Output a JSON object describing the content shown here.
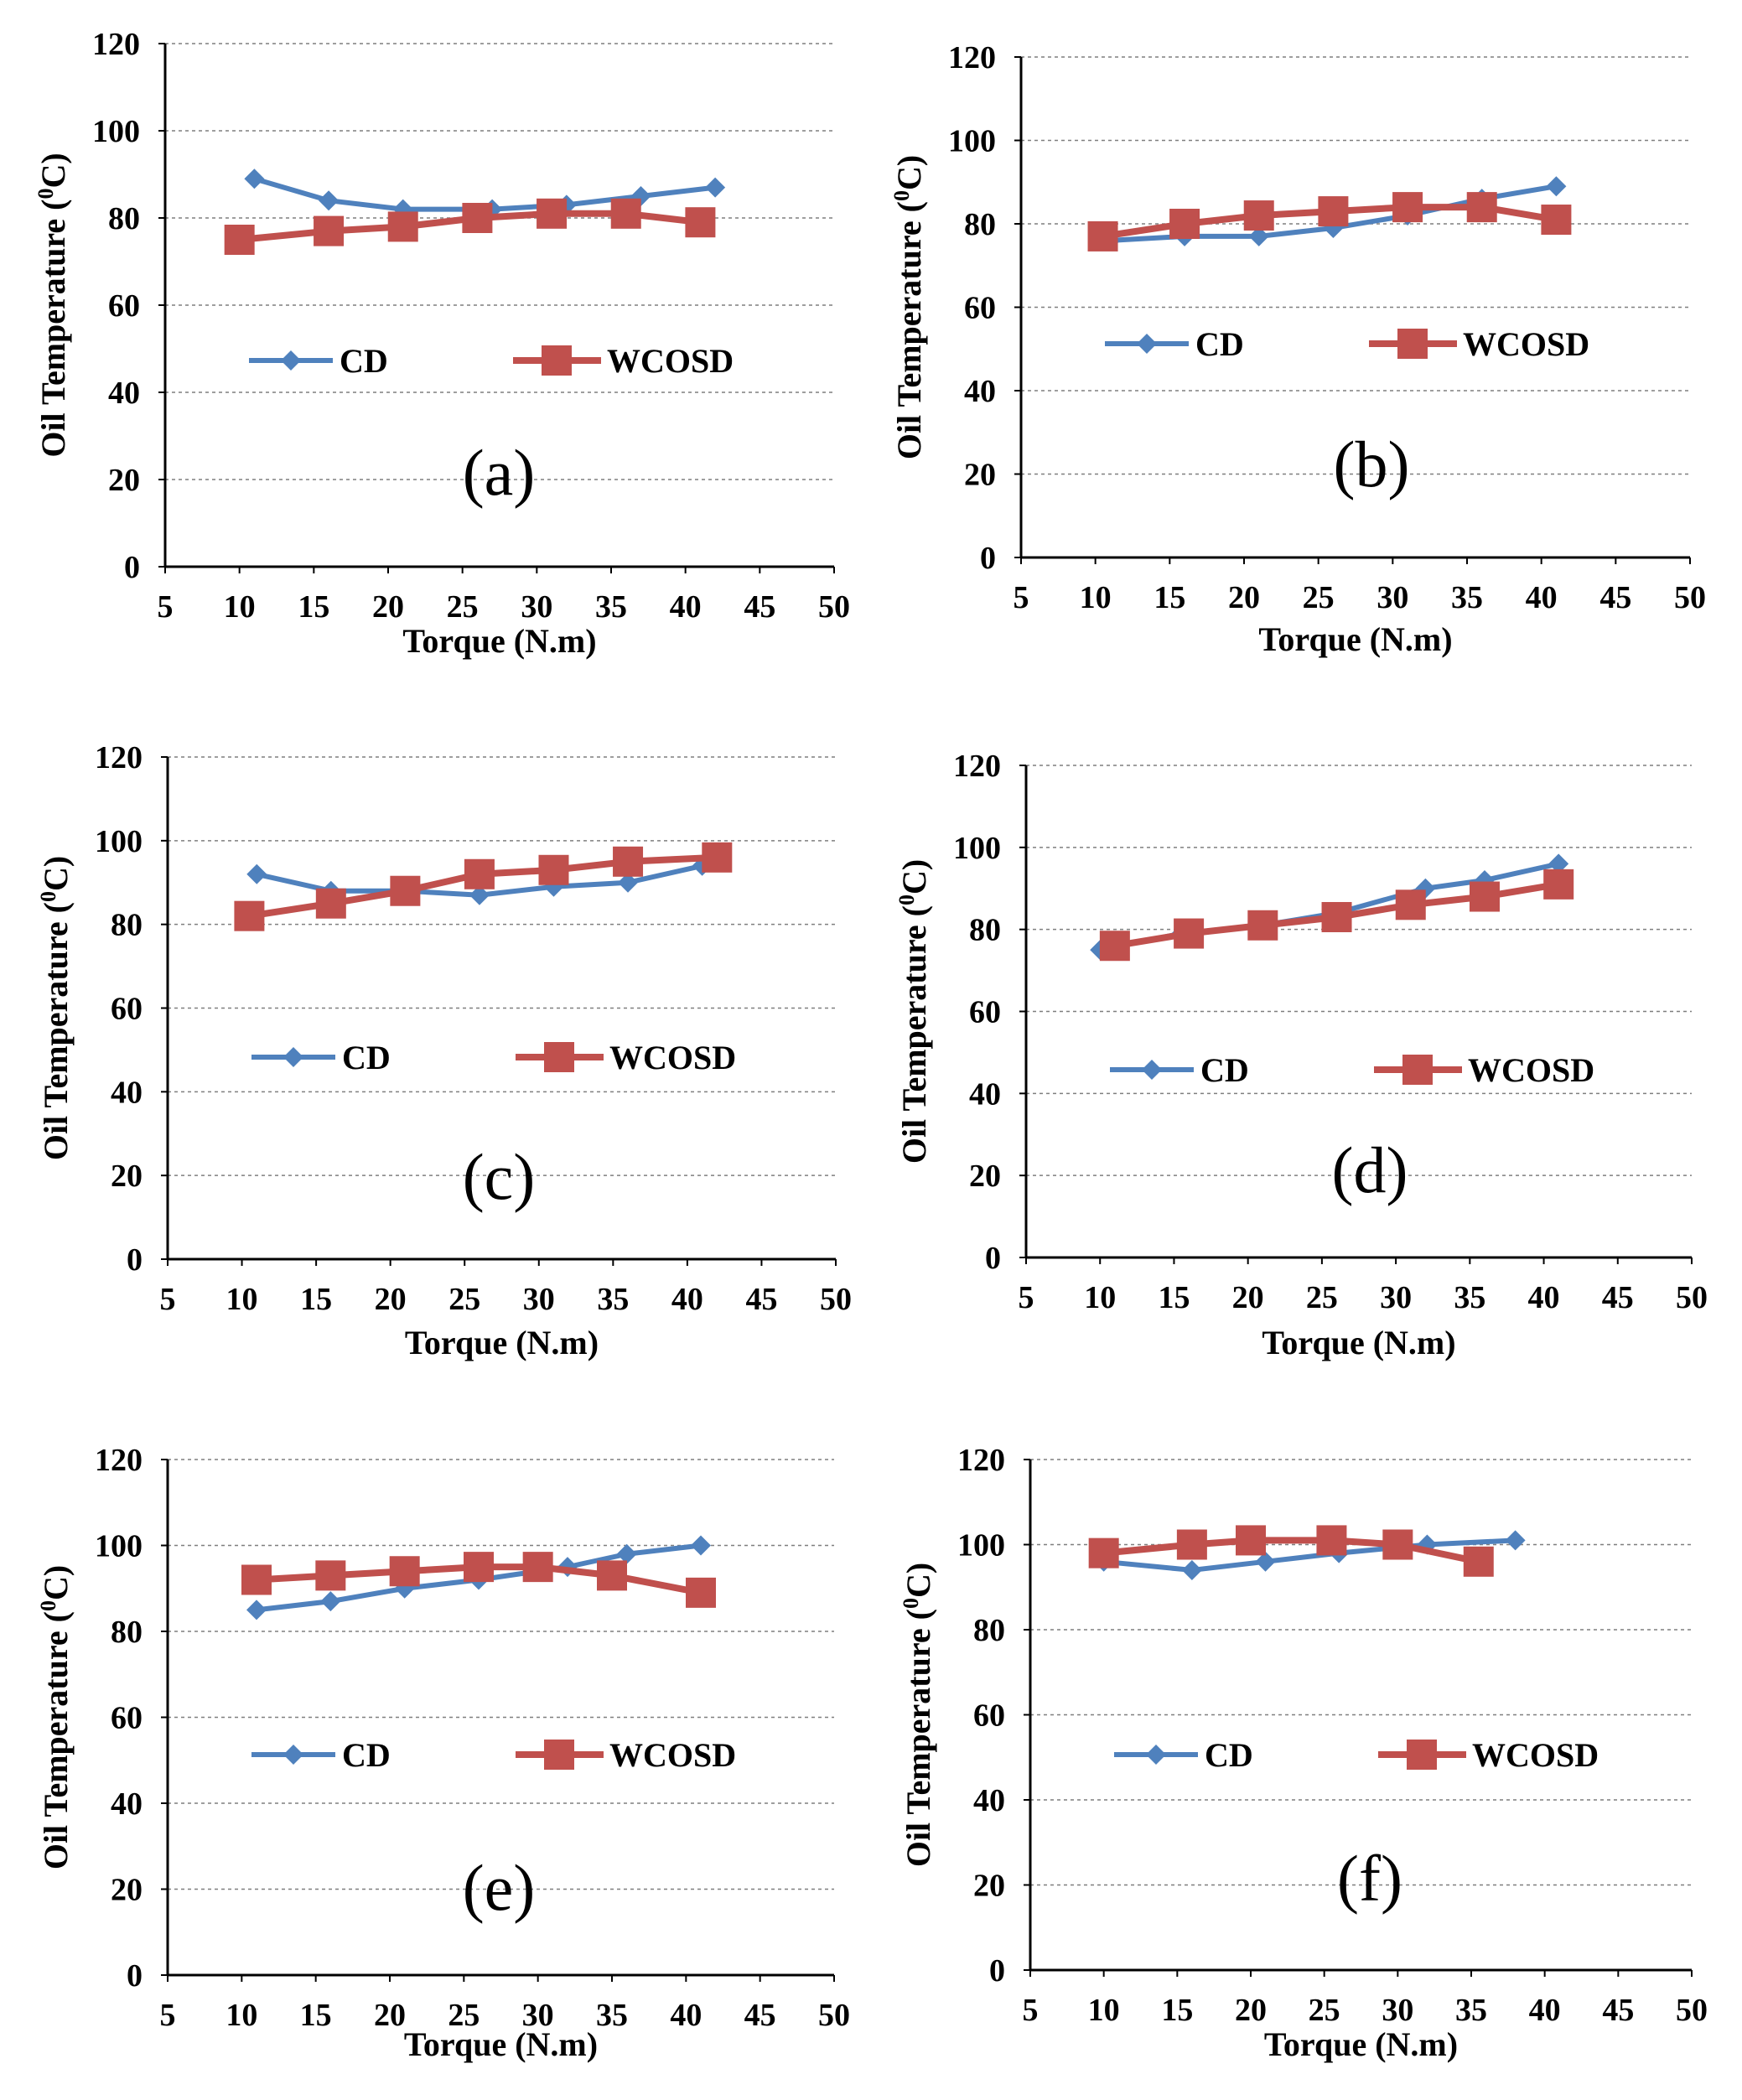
{
  "colors": {
    "cd": "#4f81bd",
    "wcosd": "#c0504d"
  },
  "chart_data": [
    {
      "type": "line",
      "panel": "(a)",
      "xlabel": "Torque (N.m)",
      "ylabel": "Oil Temperature (0C)",
      "xlim": [
        5,
        50
      ],
      "ylim": [
        0,
        120
      ],
      "xticks": [
        5,
        10,
        15,
        20,
        25,
        30,
        35,
        40,
        45,
        50
      ],
      "yticks": [
        0,
        20,
        40,
        60,
        80,
        100,
        120
      ],
      "legend_position": "middle",
      "series": [
        {
          "name": "CD",
          "x": [
            11,
            16,
            21,
            27,
            32,
            37,
            42
          ],
          "y": [
            89,
            84,
            82,
            82,
            83,
            85,
            87
          ]
        },
        {
          "name": "WCOSD",
          "x": [
            10,
            16,
            21,
            26,
            31,
            36,
            41
          ],
          "y": [
            75,
            77,
            78,
            80,
            81,
            81,
            79
          ]
        }
      ]
    },
    {
      "type": "line",
      "panel": "(b)",
      "xlabel": "Torque (N.m)",
      "ylabel": "Oil Temperature (0C)",
      "xlim": [
        5,
        50
      ],
      "ylim": [
        0,
        120
      ],
      "xticks": [
        5,
        10,
        15,
        20,
        25,
        30,
        35,
        40,
        45,
        50
      ],
      "yticks": [
        0,
        20,
        40,
        60,
        80,
        100,
        120
      ],
      "legend_position": "middle",
      "series": [
        {
          "name": "CD",
          "x": [
            11,
            16,
            21,
            26,
            31,
            36,
            41
          ],
          "y": [
            76,
            77,
            77,
            79,
            82,
            86,
            89
          ]
        },
        {
          "name": "WCOSD",
          "x": [
            10.5,
            16,
            21,
            26,
            31,
            36,
            41
          ],
          "y": [
            77,
            80,
            82,
            83,
            84,
            84,
            81
          ]
        }
      ]
    },
    {
      "type": "line",
      "panel": "(c)",
      "xlabel": "Torque (N.m)",
      "ylabel": "Oil Temperature (0C)",
      "xlim": [
        5,
        50
      ],
      "ylim": [
        0,
        120
      ],
      "xticks": [
        5,
        10,
        15,
        20,
        25,
        30,
        35,
        40,
        45,
        50
      ],
      "yticks": [
        0,
        20,
        40,
        60,
        80,
        100,
        120
      ],
      "legend_position": "middle",
      "series": [
        {
          "name": "CD",
          "x": [
            11,
            16,
            21,
            26,
            31,
            36,
            41
          ],
          "y": [
            92,
            88,
            88,
            87,
            89,
            90,
            94
          ]
        },
        {
          "name": "WCOSD",
          "x": [
            10.5,
            16,
            21,
            26,
            31,
            36,
            42
          ],
          "y": [
            82,
            85,
            88,
            92,
            93,
            95,
            96
          ]
        }
      ]
    },
    {
      "type": "line",
      "panel": "(d)",
      "xlabel": "Torque (N.m)",
      "ylabel": "Oil Temperature (0C)",
      "xlim": [
        5,
        50
      ],
      "ylim": [
        0,
        120
      ],
      "xticks": [
        5,
        10,
        15,
        20,
        25,
        30,
        35,
        40,
        45,
        50
      ],
      "yticks": [
        0,
        20,
        40,
        60,
        80,
        100,
        120
      ],
      "legend_position": "middle",
      "series": [
        {
          "name": "CD",
          "x": [
            10,
            15.5,
            21,
            26,
            32,
            36,
            41
          ],
          "y": [
            75,
            79,
            81,
            84,
            90,
            92,
            96
          ]
        },
        {
          "name": "WCOSD",
          "x": [
            11,
            16,
            21,
            26,
            31,
            36,
            41
          ],
          "y": [
            76,
            79,
            81,
            83,
            86,
            88,
            91
          ]
        }
      ]
    },
    {
      "type": "line",
      "panel": "(e)",
      "xlabel": "Torque (N.m)",
      "ylabel": "Oil Temperature (0C)",
      "xlim": [
        5,
        50
      ],
      "ylim": [
        0,
        120
      ],
      "xticks": [
        5,
        10,
        15,
        20,
        25,
        30,
        35,
        40,
        45,
        50
      ],
      "yticks": [
        0,
        20,
        40,
        60,
        80,
        100,
        120
      ],
      "legend_position": "middle",
      "series": [
        {
          "name": "CD",
          "x": [
            11,
            16,
            21,
            26,
            32,
            36,
            41
          ],
          "y": [
            85,
            87,
            90,
            92,
            95,
            98,
            100
          ]
        },
        {
          "name": "WCOSD",
          "x": [
            11,
            16,
            21,
            26,
            30,
            35,
            41
          ],
          "y": [
            92,
            93,
            94,
            95,
            95,
            93,
            89
          ]
        }
      ]
    },
    {
      "type": "line",
      "panel": "(f)",
      "xlabel": "Torque (N.m)",
      "ylabel": "Oil Temperature (0C)",
      "xlim": [
        5,
        50
      ],
      "ylim": [
        0,
        120
      ],
      "xticks": [
        5,
        10,
        15,
        20,
        25,
        30,
        35,
        40,
        45,
        50
      ],
      "yticks": [
        0,
        20,
        40,
        60,
        80,
        100,
        120
      ],
      "legend_position": "middle",
      "series": [
        {
          "name": "CD",
          "x": [
            10,
            16,
            21,
            26,
            32,
            38
          ],
          "y": [
            96,
            94,
            96,
            98,
            100,
            101
          ]
        },
        {
          "name": "WCOSD",
          "x": [
            10,
            16,
            20,
            25.5,
            30,
            35.5
          ],
          "y": [
            98,
            100,
            101,
            101,
            100,
            96
          ]
        }
      ]
    }
  ]
}
